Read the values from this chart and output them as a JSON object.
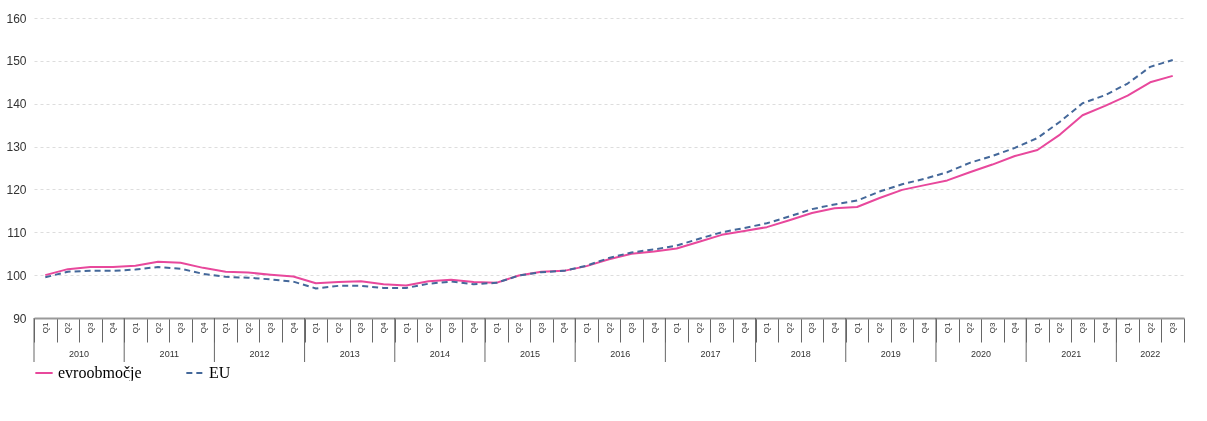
{
  "chart_data": {
    "type": "line",
    "categories": [
      "Q1",
      "Q2",
      "Q3",
      "Q4",
      "Q1",
      "Q2",
      "Q3",
      "Q4",
      "Q1",
      "Q2",
      "Q3",
      "Q4",
      "Q1",
      "Q2",
      "Q3",
      "Q4",
      "Q1",
      "Q2",
      "Q3",
      "Q4",
      "Q1",
      "Q2",
      "Q3",
      "Q4",
      "Q1",
      "Q2",
      "Q3",
      "Q4",
      "Q1",
      "Q2",
      "Q3",
      "Q4",
      "Q1",
      "Q2",
      "Q3",
      "Q4",
      "Q1",
      "Q2",
      "Q3",
      "Q4",
      "Q1",
      "Q2",
      "Q3",
      "Q4",
      "Q1",
      "Q2",
      "Q3",
      "Q4",
      "Q1",
      "Q2",
      "Q3"
    ],
    "series": [
      {
        "name": "evroobmočje",
        "color": "#e8489c",
        "line_style": "solid",
        "values": [
          100.0,
          101.4,
          101.9,
          101.9,
          102.2,
          103.1,
          102.9,
          101.7,
          100.8,
          100.6,
          100.1,
          99.7,
          98.1,
          98.4,
          98.6,
          97.9,
          97.6,
          98.6,
          98.9,
          98.4,
          98.2,
          99.9,
          100.8,
          101.0,
          102.1,
          103.7,
          105.0,
          105.5,
          106.2,
          107.8,
          109.4,
          110.3,
          111.2,
          112.8,
          114.5,
          115.6,
          115.9,
          118.0,
          119.9,
          121.0,
          122.1,
          124.0,
          125.8,
          127.8,
          129.2,
          132.8,
          137.3,
          139.5,
          141.9,
          145.0,
          146.5
        ]
      },
      {
        "name": "EU",
        "color": "#44689a",
        "line_style": "dashed",
        "values": [
          99.5,
          100.8,
          101.0,
          101.0,
          101.3,
          101.9,
          101.5,
          100.3,
          99.6,
          99.4,
          99.0,
          98.5,
          96.9,
          97.5,
          97.5,
          97.0,
          97.0,
          98.0,
          98.5,
          97.9,
          98.2,
          99.9,
          100.7,
          101.0,
          102.2,
          104.0,
          105.3,
          106.0,
          106.9,
          108.5,
          110.0,
          111.0,
          112.1,
          113.7,
          115.4,
          116.5,
          117.4,
          119.5,
          121.2,
          122.5,
          124.0,
          126.2,
          127.8,
          129.7,
          132.0,
          135.8,
          140.1,
          142.0,
          144.7,
          148.6,
          150.2
        ]
      }
    ],
    "annotations": [
      "2010",
      "2011",
      "2012",
      "2013",
      "2014",
      "2015",
      "2016",
      "2017",
      "2018",
      "2019",
      "2020",
      "2021",
      "2022"
    ],
    "ylim": [
      90,
      160
    ],
    "yticks": [
      90,
      100,
      110,
      120,
      130,
      140,
      150,
      160
    ],
    "grid": "y",
    "legend": "bottom"
  }
}
